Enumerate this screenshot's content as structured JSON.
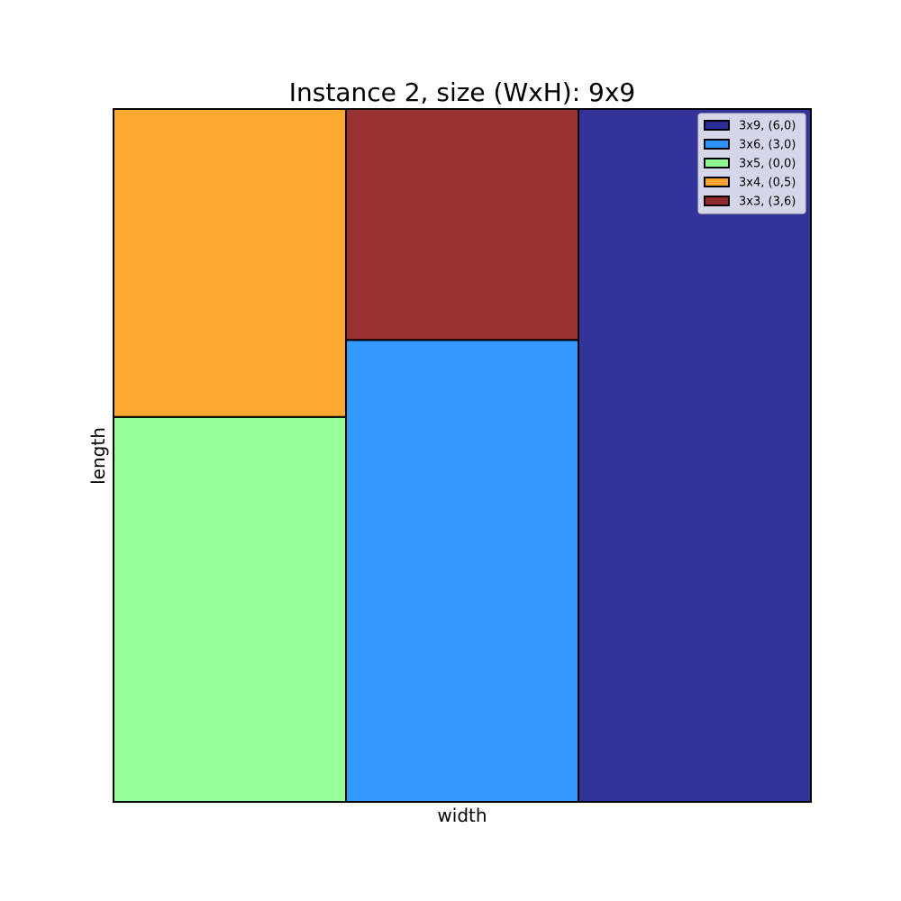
{
  "chart_data": {
    "type": "rectangle-packing",
    "title": "Instance 2, size (WxH): 9x9",
    "xlabel": "width",
    "ylabel": "length",
    "xlim": [
      0,
      9
    ],
    "ylim": [
      0,
      9
    ],
    "grid": false,
    "legend_position": "top-right",
    "rectangles": [
      {
        "label": "3x9, (6,0)",
        "x": 6,
        "y": 0,
        "w": 3,
        "h": 9,
        "color": "#000080"
      },
      {
        "label": "3x6, (3,0)",
        "x": 3,
        "y": 0,
        "w": 3,
        "h": 6,
        "color": "#0080ff"
      },
      {
        "label": "3x5, (0,0)",
        "x": 0,
        "y": 0,
        "w": 3,
        "h": 5,
        "color": "#7dff7a"
      },
      {
        "label": "3x4, (0,5)",
        "x": 0,
        "y": 5,
        "w": 3,
        "h": 4,
        "color": "#ff9400"
      },
      {
        "label": "3x3, (3,6)",
        "x": 3,
        "y": 6,
        "w": 3,
        "h": 3,
        "color": "#800000"
      }
    ],
    "fill_opacity": 0.8
  }
}
